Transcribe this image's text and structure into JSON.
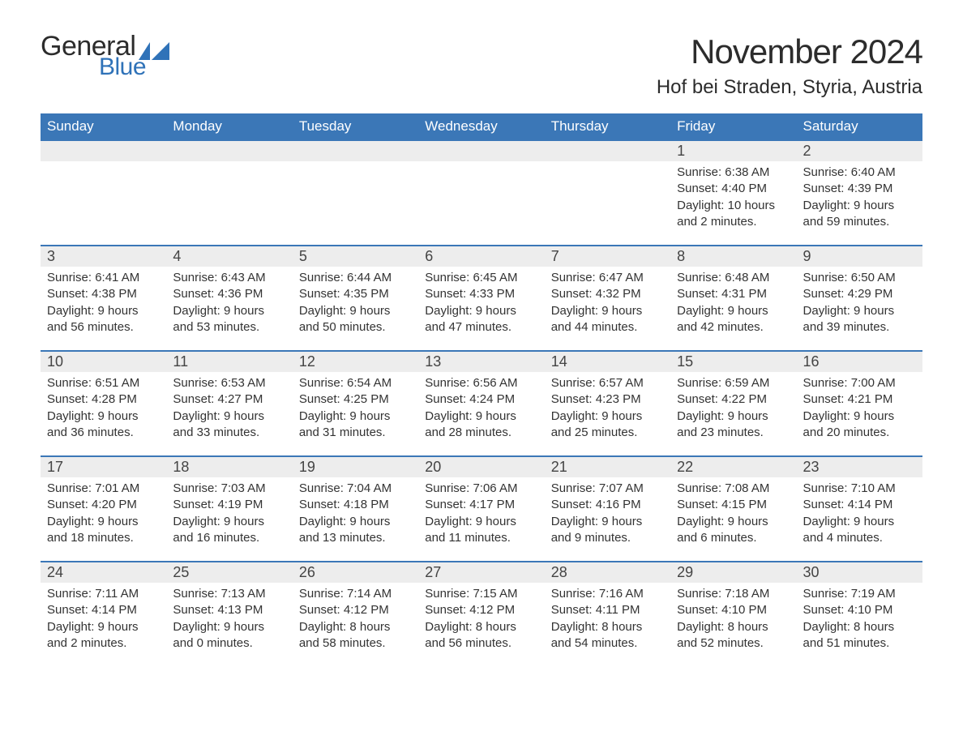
{
  "brand": {
    "word1": "General",
    "word2": "Blue",
    "accent_color": "#2f72b8",
    "text_color": "#2c2c2c"
  },
  "title": "November 2024",
  "location": "Hof bei Straden, Styria, Austria",
  "colors": {
    "header_bg": "#3b77b7",
    "header_text": "#ffffff",
    "daynum_bg": "#ededed",
    "body_text": "#333333",
    "rule": "#3b77b7",
    "page_bg": "#ffffff"
  },
  "weekdays": [
    "Sunday",
    "Monday",
    "Tuesday",
    "Wednesday",
    "Thursday",
    "Friday",
    "Saturday"
  ],
  "weeks": [
    [
      null,
      null,
      null,
      null,
      null,
      {
        "n": "1",
        "sunrise": "Sunrise: 6:38 AM",
        "sunset": "Sunset: 4:40 PM",
        "daylight": "Daylight: 10 hours and 2 minutes."
      },
      {
        "n": "2",
        "sunrise": "Sunrise: 6:40 AM",
        "sunset": "Sunset: 4:39 PM",
        "daylight": "Daylight: 9 hours and 59 minutes."
      }
    ],
    [
      {
        "n": "3",
        "sunrise": "Sunrise: 6:41 AM",
        "sunset": "Sunset: 4:38 PM",
        "daylight": "Daylight: 9 hours and 56 minutes."
      },
      {
        "n": "4",
        "sunrise": "Sunrise: 6:43 AM",
        "sunset": "Sunset: 4:36 PM",
        "daylight": "Daylight: 9 hours and 53 minutes."
      },
      {
        "n": "5",
        "sunrise": "Sunrise: 6:44 AM",
        "sunset": "Sunset: 4:35 PM",
        "daylight": "Daylight: 9 hours and 50 minutes."
      },
      {
        "n": "6",
        "sunrise": "Sunrise: 6:45 AM",
        "sunset": "Sunset: 4:33 PM",
        "daylight": "Daylight: 9 hours and 47 minutes."
      },
      {
        "n": "7",
        "sunrise": "Sunrise: 6:47 AM",
        "sunset": "Sunset: 4:32 PM",
        "daylight": "Daylight: 9 hours and 44 minutes."
      },
      {
        "n": "8",
        "sunrise": "Sunrise: 6:48 AM",
        "sunset": "Sunset: 4:31 PM",
        "daylight": "Daylight: 9 hours and 42 minutes."
      },
      {
        "n": "9",
        "sunrise": "Sunrise: 6:50 AM",
        "sunset": "Sunset: 4:29 PM",
        "daylight": "Daylight: 9 hours and 39 minutes."
      }
    ],
    [
      {
        "n": "10",
        "sunrise": "Sunrise: 6:51 AM",
        "sunset": "Sunset: 4:28 PM",
        "daylight": "Daylight: 9 hours and 36 minutes."
      },
      {
        "n": "11",
        "sunrise": "Sunrise: 6:53 AM",
        "sunset": "Sunset: 4:27 PM",
        "daylight": "Daylight: 9 hours and 33 minutes."
      },
      {
        "n": "12",
        "sunrise": "Sunrise: 6:54 AM",
        "sunset": "Sunset: 4:25 PM",
        "daylight": "Daylight: 9 hours and 31 minutes."
      },
      {
        "n": "13",
        "sunrise": "Sunrise: 6:56 AM",
        "sunset": "Sunset: 4:24 PM",
        "daylight": "Daylight: 9 hours and 28 minutes."
      },
      {
        "n": "14",
        "sunrise": "Sunrise: 6:57 AM",
        "sunset": "Sunset: 4:23 PM",
        "daylight": "Daylight: 9 hours and 25 minutes."
      },
      {
        "n": "15",
        "sunrise": "Sunrise: 6:59 AM",
        "sunset": "Sunset: 4:22 PM",
        "daylight": "Daylight: 9 hours and 23 minutes."
      },
      {
        "n": "16",
        "sunrise": "Sunrise: 7:00 AM",
        "sunset": "Sunset: 4:21 PM",
        "daylight": "Daylight: 9 hours and 20 minutes."
      }
    ],
    [
      {
        "n": "17",
        "sunrise": "Sunrise: 7:01 AM",
        "sunset": "Sunset: 4:20 PM",
        "daylight": "Daylight: 9 hours and 18 minutes."
      },
      {
        "n": "18",
        "sunrise": "Sunrise: 7:03 AM",
        "sunset": "Sunset: 4:19 PM",
        "daylight": "Daylight: 9 hours and 16 minutes."
      },
      {
        "n": "19",
        "sunrise": "Sunrise: 7:04 AM",
        "sunset": "Sunset: 4:18 PM",
        "daylight": "Daylight: 9 hours and 13 minutes."
      },
      {
        "n": "20",
        "sunrise": "Sunrise: 7:06 AM",
        "sunset": "Sunset: 4:17 PM",
        "daylight": "Daylight: 9 hours and 11 minutes."
      },
      {
        "n": "21",
        "sunrise": "Sunrise: 7:07 AM",
        "sunset": "Sunset: 4:16 PM",
        "daylight": "Daylight: 9 hours and 9 minutes."
      },
      {
        "n": "22",
        "sunrise": "Sunrise: 7:08 AM",
        "sunset": "Sunset: 4:15 PM",
        "daylight": "Daylight: 9 hours and 6 minutes."
      },
      {
        "n": "23",
        "sunrise": "Sunrise: 7:10 AM",
        "sunset": "Sunset: 4:14 PM",
        "daylight": "Daylight: 9 hours and 4 minutes."
      }
    ],
    [
      {
        "n": "24",
        "sunrise": "Sunrise: 7:11 AM",
        "sunset": "Sunset: 4:14 PM",
        "daylight": "Daylight: 9 hours and 2 minutes."
      },
      {
        "n": "25",
        "sunrise": "Sunrise: 7:13 AM",
        "sunset": "Sunset: 4:13 PM",
        "daylight": "Daylight: 9 hours and 0 minutes."
      },
      {
        "n": "26",
        "sunrise": "Sunrise: 7:14 AM",
        "sunset": "Sunset: 4:12 PM",
        "daylight": "Daylight: 8 hours and 58 minutes."
      },
      {
        "n": "27",
        "sunrise": "Sunrise: 7:15 AM",
        "sunset": "Sunset: 4:12 PM",
        "daylight": "Daylight: 8 hours and 56 minutes."
      },
      {
        "n": "28",
        "sunrise": "Sunrise: 7:16 AM",
        "sunset": "Sunset: 4:11 PM",
        "daylight": "Daylight: 8 hours and 54 minutes."
      },
      {
        "n": "29",
        "sunrise": "Sunrise: 7:18 AM",
        "sunset": "Sunset: 4:10 PM",
        "daylight": "Daylight: 8 hours and 52 minutes."
      },
      {
        "n": "30",
        "sunrise": "Sunrise: 7:19 AM",
        "sunset": "Sunset: 4:10 PM",
        "daylight": "Daylight: 8 hours and 51 minutes."
      }
    ]
  ]
}
